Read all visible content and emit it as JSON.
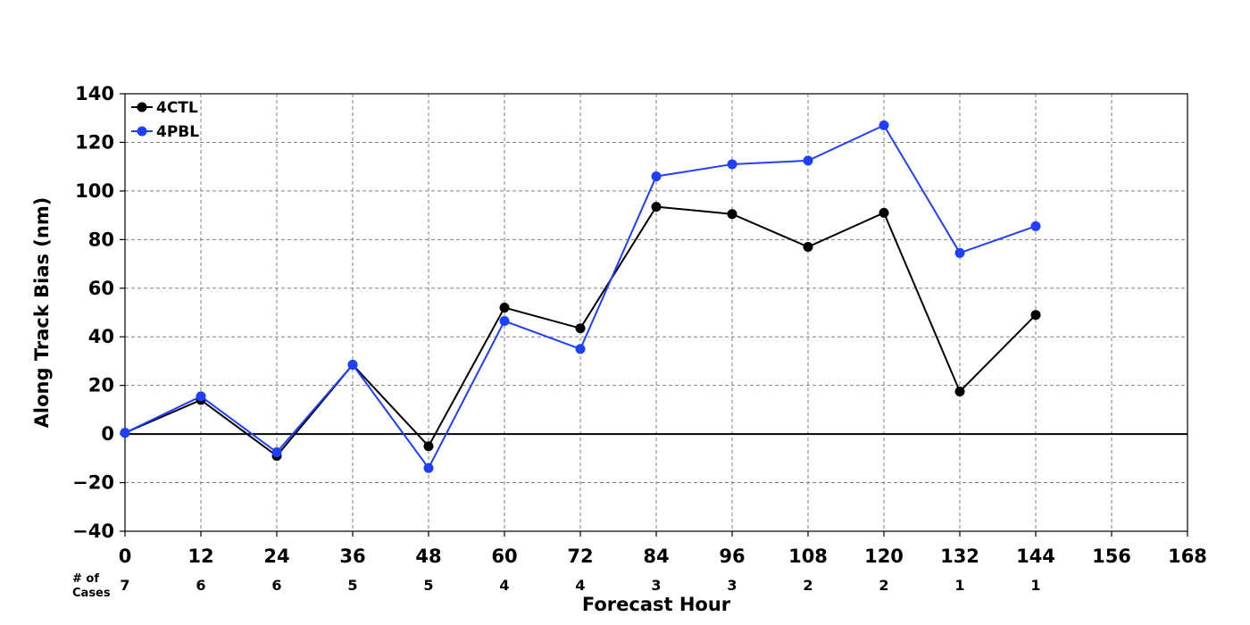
{
  "chart_data": {
    "type": "line",
    "xlabel": "Forecast Hour",
    "ylabel": "Along Track Bias (nm)",
    "xlim": [
      0,
      168
    ],
    "ylim": [
      -40,
      140
    ],
    "xticks": [
      0,
      12,
      24,
      36,
      48,
      60,
      72,
      84,
      96,
      108,
      120,
      132,
      144,
      156,
      168
    ],
    "yticks": [
      -40,
      -20,
      0,
      20,
      40,
      60,
      80,
      100,
      120,
      140
    ],
    "xtick_labels": [
      "0",
      "12",
      "24",
      "36",
      "48",
      "60",
      "72",
      "84",
      "96",
      "108",
      "120",
      "132",
      "144",
      "156",
      "168"
    ],
    "ytick_labels": [
      "−40",
      "−20",
      "0",
      "20",
      "40",
      "60",
      "80",
      "100",
      "120",
      "140"
    ],
    "grid": true,
    "legend_position": "top-left",
    "zero_line": true,
    "series": [
      {
        "name": "4CTL",
        "color": "#000000",
        "x": [
          0,
          12,
          24,
          36,
          48,
          60,
          72,
          84,
          96,
          108,
          120,
          132,
          144
        ],
        "y": [
          0.5,
          14,
          -9,
          28.5,
          -5,
          52,
          43.5,
          93.5,
          90.5,
          77,
          91,
          17.5,
          49
        ]
      },
      {
        "name": "4PBL",
        "color": "#1f3fff",
        "x": [
          0,
          12,
          24,
          36,
          48,
          60,
          72,
          84,
          96,
          108,
          120,
          132,
          144
        ],
        "y": [
          0.5,
          15.5,
          -7.5,
          28.5,
          -14,
          46.5,
          35,
          106,
          111,
          112.5,
          127,
          74.5,
          85.5
        ]
      }
    ],
    "cases": {
      "header_line1": "# of",
      "header_line2": "Cases",
      "x": [
        0,
        12,
        24,
        36,
        48,
        60,
        72,
        84,
        96,
        108,
        120,
        132,
        144
      ],
      "counts": [
        "7",
        "6",
        "6",
        "5",
        "5",
        "4",
        "4",
        "3",
        "3",
        "2",
        "2",
        "1",
        "1"
      ]
    }
  }
}
